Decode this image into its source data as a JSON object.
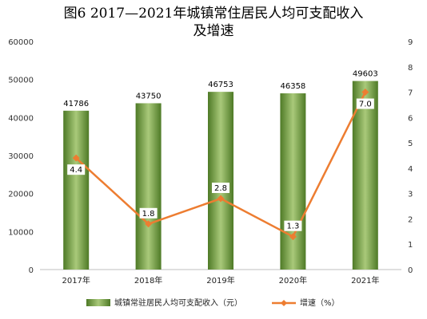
{
  "chart_data": {
    "type": "bar",
    "title_line1": "图6  2017—2021年城镇常住居民人均可支配收入",
    "title_line2": "及增速",
    "categories": [
      "2017年",
      "2018年",
      "2019年",
      "2020年",
      "2021年"
    ],
    "series": [
      {
        "name": "城镇常驻居民人均可支配收入（元）",
        "type": "bar",
        "axis": "left",
        "values": [
          41786,
          43750,
          46753,
          46358,
          49603
        ],
        "color": "#6f9a3c"
      },
      {
        "name": "增速（%）",
        "type": "line",
        "axis": "right",
        "values": [
          4.4,
          1.8,
          2.8,
          1.3,
          7.0
        ],
        "labels": [
          "4.4",
          "1.8",
          "2.8",
          "1.3",
          "7.0"
        ],
        "color": "#ed7d31"
      }
    ],
    "ylim_left": [
      0,
      60000
    ],
    "yticks_left": [
      0,
      10000,
      20000,
      30000,
      40000,
      50000,
      60000
    ],
    "ylim_right": [
      0,
      9
    ],
    "yticks_right": [
      0,
      1,
      2,
      3,
      4,
      5,
      6,
      7,
      8,
      9
    ],
    "grid": false,
    "legend_position": "bottom"
  }
}
